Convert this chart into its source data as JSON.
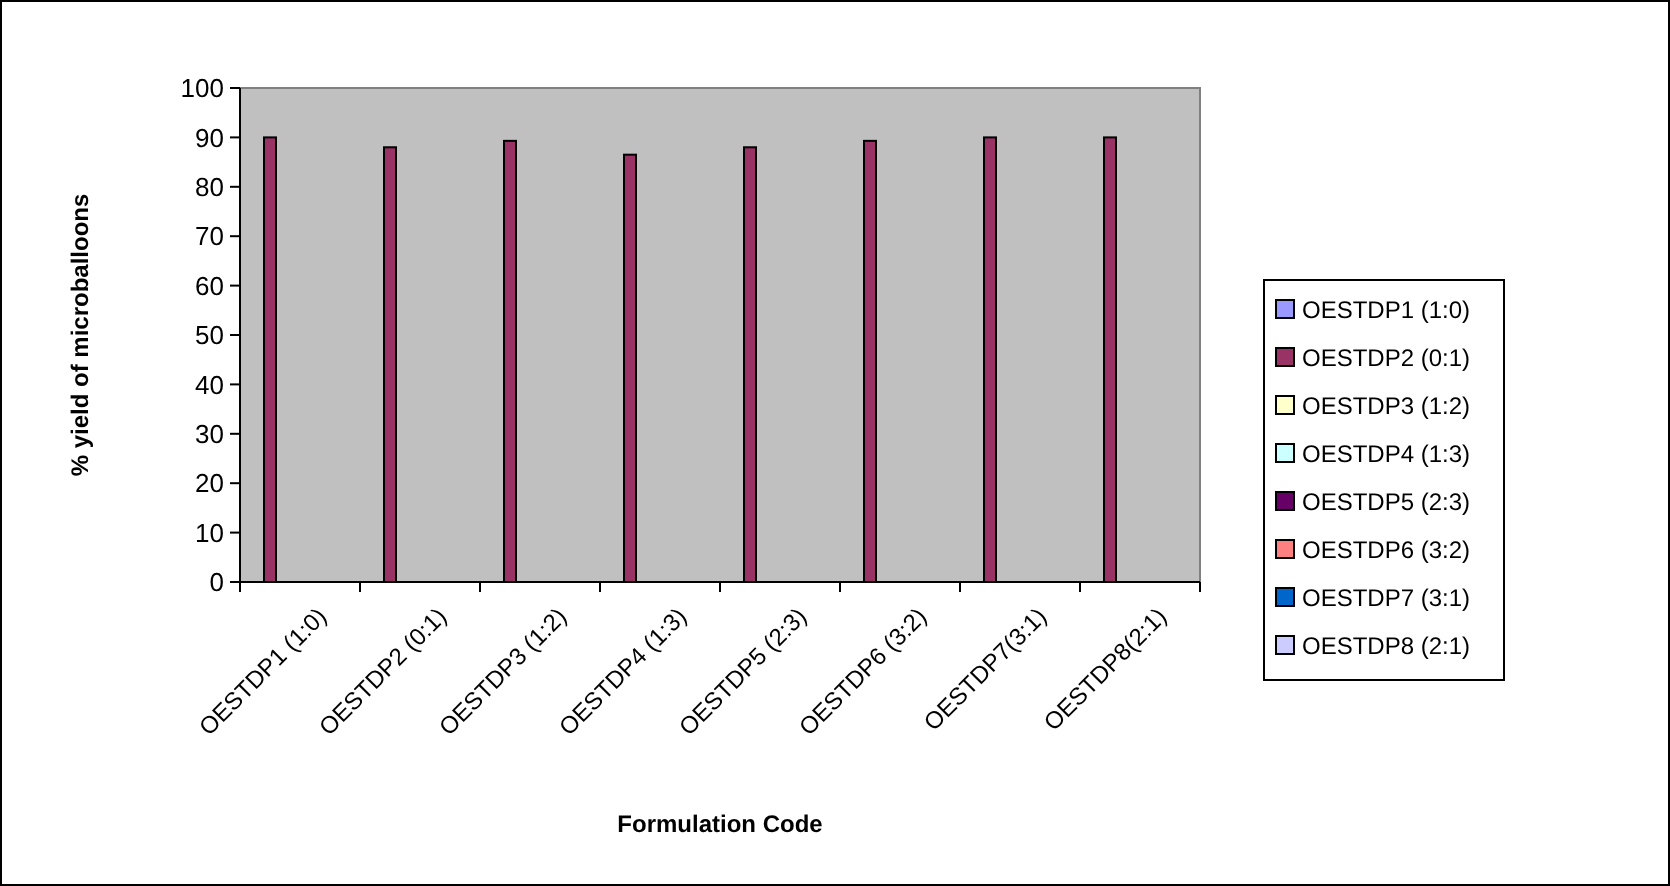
{
  "chart_data": {
    "type": "bar",
    "xlabel": "Formulation Code",
    "ylabel": "% yield of microballoons",
    "categories": [
      "OESTDP1 (1:0)",
      "OESTDP2 (0:1)",
      "OESTDP3 (1:2)",
      "OESTDP4 (1:3)",
      "OESTDP5 (2:3)",
      "OESTDP6 (3:2)",
      "OESTDP7(3:1)",
      "OESTDP8(2:1)"
    ],
    "series": [
      {
        "name": "OESTDP1 (1:0)",
        "color": "#9999ff",
        "values": [
          null,
          null,
          null,
          null,
          null,
          null,
          null,
          null
        ]
      },
      {
        "name": "OESTDP2 (0:1)",
        "color": "#993366",
        "values": [
          90,
          88,
          89.3,
          86.5,
          88,
          89.3,
          90,
          90
        ]
      },
      {
        "name": "OESTDP3 (1:2)",
        "color": "#ffffcc",
        "values": [
          0,
          null,
          null,
          null,
          null,
          null,
          null,
          null
        ]
      },
      {
        "name": "OESTDP4 (1:3)",
        "color": "#ccffff",
        "values": [
          0,
          null,
          null,
          null,
          null,
          null,
          null,
          null
        ]
      },
      {
        "name": "OESTDP5 (2:3)",
        "color": "#660066",
        "values": [
          0,
          null,
          null,
          null,
          null,
          null,
          null,
          null
        ]
      },
      {
        "name": "OESTDP6 (3:2)",
        "color": "#ff8080",
        "values": [
          0,
          null,
          null,
          null,
          null,
          null,
          null,
          null
        ]
      },
      {
        "name": "OESTDP7 (3:1)",
        "color": "#0066cc",
        "values": [
          0,
          null,
          null,
          null,
          null,
          null,
          null,
          null
        ]
      },
      {
        "name": "OESTDP8 (2:1)",
        "color": "#ccccff",
        "values": [
          0,
          null,
          null,
          null,
          null,
          null,
          null,
          null
        ]
      }
    ],
    "ylim": [
      0,
      100
    ],
    "yticks": [
      0,
      10,
      20,
      30,
      40,
      50,
      60,
      70,
      80,
      90,
      100
    ],
    "grid": false,
    "legend": "right"
  }
}
